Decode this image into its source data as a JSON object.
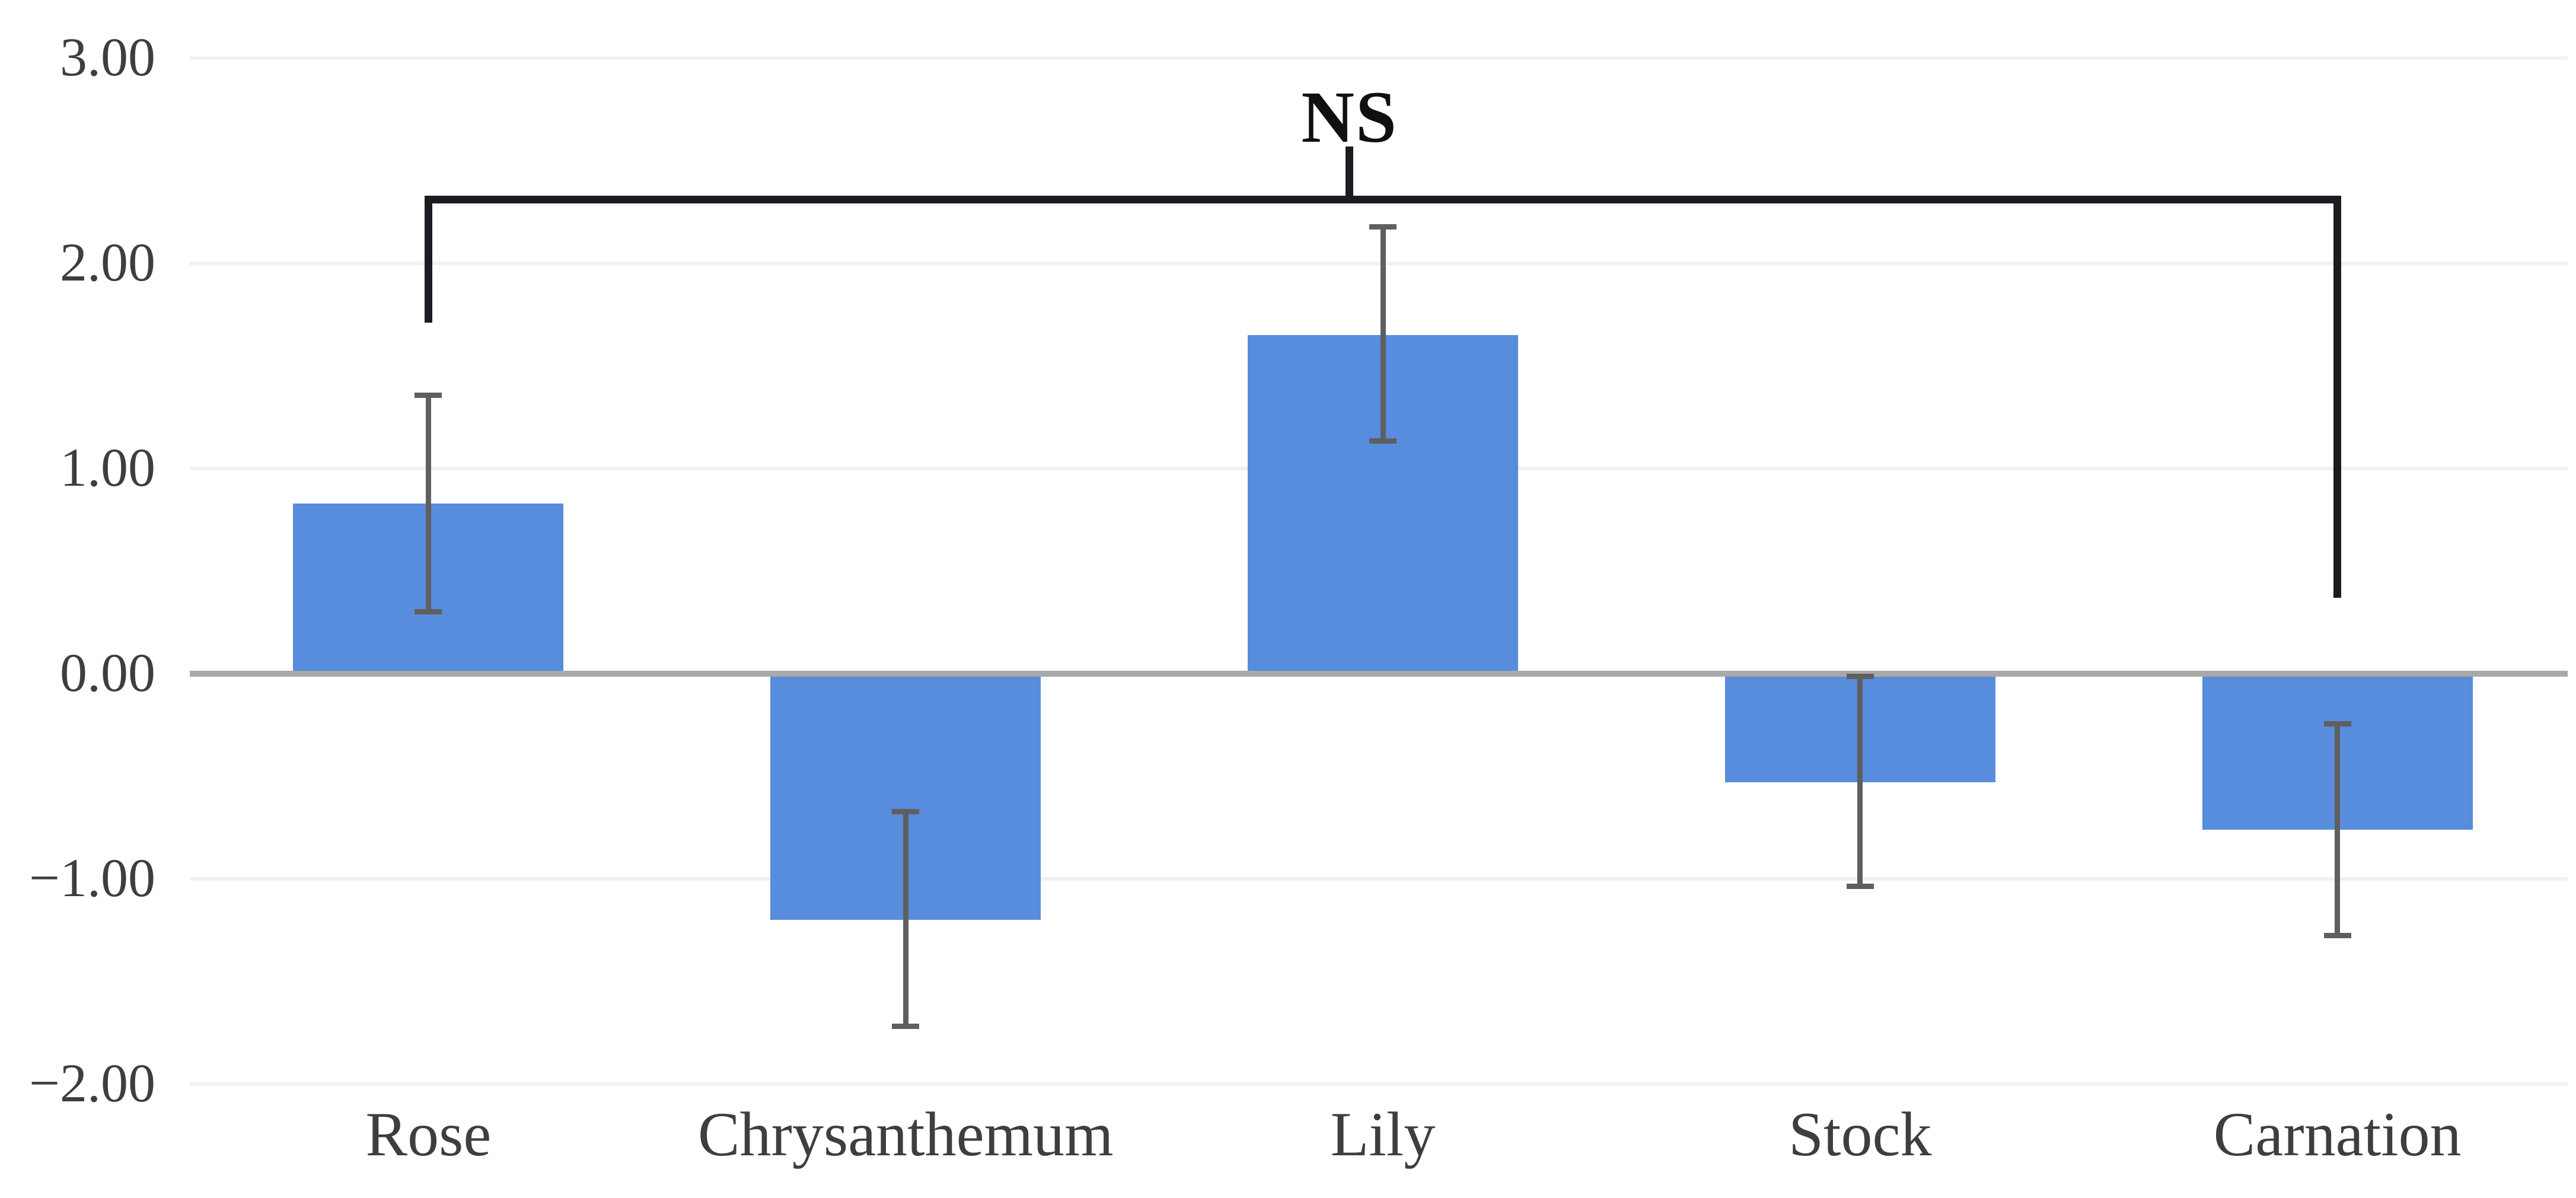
{
  "chart_data": {
    "type": "bar",
    "title": "",
    "xlabel": "",
    "ylabel": "",
    "categories": [
      "Rose",
      "Chrysanthemum",
      "Lily",
      "Stock",
      "Carnation"
    ],
    "values": [
      0.83,
      -1.2,
      1.65,
      -0.53,
      -0.76
    ],
    "error_high": [
      1.37,
      -0.66,
      2.19,
      0.0,
      -0.23
    ],
    "error_low": [
      0.29,
      -1.73,
      1.12,
      -1.05,
      -1.29
    ],
    "y_axis": {
      "tick_labels": [
        "3.00",
        "2.00",
        "1.00",
        "0.00",
        "−1.00",
        "−2.00"
      ],
      "tick_values": [
        3,
        2,
        1,
        0,
        -1,
        -2
      ],
      "labeled_range": [
        -2,
        3
      ]
    },
    "grid": "horizontal-light",
    "legend": "none",
    "annotation": {
      "label": "NS",
      "from_category": "Rose",
      "to_category": "Carnation",
      "bar_level": 2.33,
      "left_end_level": 1.71,
      "right_end_level": 0.37,
      "tick_top_level": 2.57,
      "label_level": 2.71
    },
    "colors": {
      "bar": "#588cdc",
      "error_bar": "#5f5f5f",
      "bracket": "#1b1b22",
      "zero_axis": "#a9a9a9",
      "gridline": "#f1f1f1",
      "tick_text": "#3e3e3e",
      "annotation_text": "#101010"
    }
  }
}
